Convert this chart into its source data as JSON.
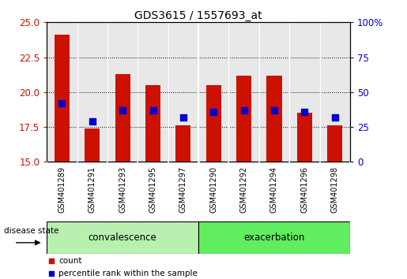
{
  "title": "GDS3615 / 1557693_at",
  "samples": [
    "GSM401289",
    "GSM401291",
    "GSM401293",
    "GSM401295",
    "GSM401297",
    "GSM401290",
    "GSM401292",
    "GSM401294",
    "GSM401296",
    "GSM401298"
  ],
  "red_values": [
    24.1,
    17.4,
    21.3,
    20.5,
    17.6,
    20.5,
    21.2,
    21.2,
    18.5,
    17.6
  ],
  "blue_values": [
    19.2,
    17.9,
    18.7,
    18.7,
    18.2,
    18.6,
    18.7,
    18.7,
    18.6,
    18.2
  ],
  "base_value": 15.0,
  "ylim": [
    15,
    25
  ],
  "y_left_ticks": [
    15,
    17.5,
    20,
    22.5,
    25
  ],
  "y_right_ticks": [
    0,
    25,
    50,
    75,
    100
  ],
  "groups": [
    {
      "label": "convalescence",
      "count": 5
    },
    {
      "label": "exacerbation",
      "count": 5
    }
  ],
  "bar_color": "#cc1100",
  "dot_color": "#0000cc",
  "bar_width": 0.5,
  "dot_size": 30,
  "disease_state_label": "disease state",
  "legend_count_label": "count",
  "legend_pct_label": "percentile rank within the sample",
  "tick_color_left": "#cc1100",
  "tick_color_right": "#0000cc",
  "bg_plot": "#e8e8e8",
  "bg_label": "#d0d0d0",
  "bg_figure": "#ffffff",
  "group_color_conv": "#b8f0b0",
  "group_color_exac": "#60ee60",
  "group_border": "#000000",
  "white_sep": "#ffffff"
}
